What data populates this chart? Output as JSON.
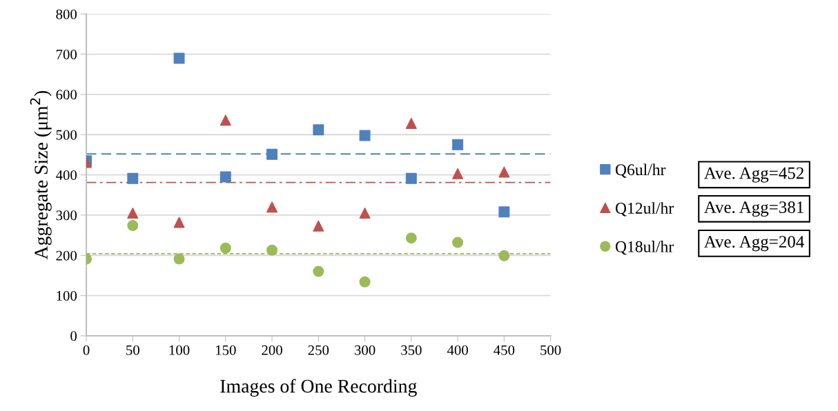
{
  "chart_data": {
    "type": "scatter",
    "xlabel": "Images of One Recording",
    "ylabel": "Aggregate Size (μm$^{2}$)",
    "x": [
      0,
      50,
      100,
      150,
      200,
      250,
      300,
      350,
      400,
      450
    ],
    "series": [
      {
        "name": "Q6ul/hr",
        "color": "#4f81bd",
        "marker": "square",
        "values": [
          435,
          391,
          690,
          395,
          451,
          512,
          498,
          391,
          475,
          308
        ]
      },
      {
        "name": "Q12ul/hr",
        "color": "#c0504d",
        "marker": "triangle",
        "values": [
          431,
          305,
          282,
          536,
          320,
          273,
          305,
          528,
          403,
          407
        ]
      },
      {
        "name": "Q18ul/hr",
        "color": "#9bbb59",
        "marker": "circle",
        "values": [
          191,
          274,
          191,
          218,
          213,
          160,
          134,
          243,
          232,
          199
        ]
      }
    ],
    "ref_lines": [
      {
        "axis": "y",
        "value": 452,
        "color": "#4f81bd",
        "line_style": "dashed"
      },
      {
        "axis": "y",
        "value": 381,
        "color": "#c0504d",
        "line_style": "dashdot"
      },
      {
        "axis": "y",
        "value": 204,
        "color": "#9bbb59",
        "line_style": "dotted"
      }
    ],
    "annotations": [
      "Ave. Agg=452",
      "Ave. Agg=381",
      "Ave. Agg=204"
    ],
    "xlim": [
      0,
      500
    ],
    "xticks": [
      0,
      50,
      100,
      150,
      200,
      250,
      300,
      350,
      400,
      450,
      500
    ],
    "ylim": [
      0,
      800
    ],
    "yticks": [
      0,
      100,
      200,
      300,
      400,
      500,
      600,
      700,
      800
    ],
    "grid": "y",
    "legend": "right"
  }
}
